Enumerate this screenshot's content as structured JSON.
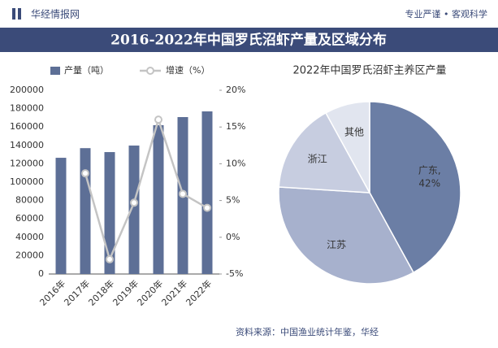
{
  "header": {
    "brand": "华经情报网",
    "slogan": "专业严谨 • 客观科学"
  },
  "title": "2016-2022年中国罗氏沼虾产量及区域分布",
  "source": "资料来源：中国渔业统计年鉴，华经",
  "chart_data": [
    {
      "type": "bar-line",
      "categories": [
        "2016年",
        "2017年",
        "2018年",
        "2019年",
        "2020年",
        "2021年",
        "2022年"
      ],
      "series": [
        {
          "name": "产量（吨）",
          "color": "#5d6f96",
          "values": [
            126500,
            137000,
            132700,
            139800,
            162000,
            170800,
            177000
          ]
        },
        {
          "name": "增速（%）",
          "color": "#c4c4c4",
          "axis": "y2",
          "values": [
            null,
            8.7,
            -3,
            4.7,
            16,
            5.9,
            4
          ]
        }
      ],
      "ylim": [
        0,
        200000
      ],
      "yticks": [
        0,
        20000,
        40000,
        60000,
        80000,
        100000,
        120000,
        140000,
        160000,
        180000,
        200000
      ],
      "y2lim": [
        -5,
        20
      ],
      "y2ticks": [
        {
          "value": -5,
          "label": "-5%"
        },
        {
          "value": 0,
          "label": "0%"
        },
        {
          "value": 5,
          "label": "5%"
        },
        {
          "value": 10,
          "label": "10%"
        },
        {
          "value": 15,
          "label": "15%"
        },
        {
          "value": 20,
          "label": "20%"
        }
      ],
      "legend": "top"
    },
    {
      "type": "pie",
      "title": "2022年中国罗氏沼虾主养区产量",
      "categories": [
        "广东,",
        "江苏",
        "浙江",
        "其他"
      ],
      "values": [
        42,
        34,
        16,
        8
      ],
      "value_labels": [
        "42%",
        null,
        null,
        null
      ],
      "colors": [
        "#6b7ea5",
        "#a7b1cd",
        "#c7cde0",
        "#e1e5ef"
      ]
    }
  ]
}
